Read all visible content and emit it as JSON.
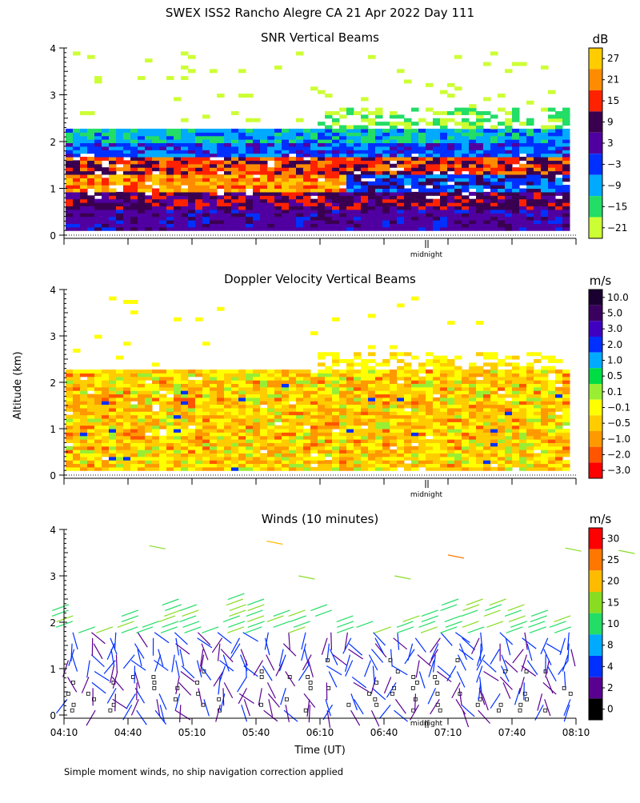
{
  "title": "SWEX ISS2 Rancho Alegre CA  21 Apr 2022 Day 111",
  "footnote": "Simple moment winds, no ship navigation correction applied",
  "shared_axes": {
    "y_label": "Altitude (km)",
    "x_label": "Time (UT)",
    "midnight_label": "midnight",
    "y_ticks": [
      "0",
      "1",
      "2",
      "3",
      "4"
    ],
    "x_tick_labels": [
      "04:10",
      "04:40",
      "05:10",
      "05:40",
      "06:10",
      "06:40",
      "07:10",
      "07:40",
      "08:10"
    ]
  },
  "chart_data": [
    {
      "type": "heatmap",
      "title": "SNR Vertical Beams",
      "unit": "dB",
      "x_range": [
        "04:10",
        "08:10"
      ],
      "ylim": [
        0,
        4
      ],
      "colorbar_labels": [
        "27",
        "21",
        "15",
        "9",
        "3",
        "−3",
        "−9",
        "−15",
        "−21"
      ],
      "colorbar_colors": [
        "#ffcc00",
        "#ff8c00",
        "#ff2200",
        "#3a0050",
        "#5000a0",
        "#0030ff",
        "#00aaff",
        "#22dd66",
        "#ccff33"
      ],
      "layers": [
        {
          "alt_range": [
            0.1,
            0.5
          ],
          "level": "3"
        },
        {
          "alt_range": [
            0.5,
            0.9
          ],
          "level": "9 to 15"
        },
        {
          "alt_range": [
            0.9,
            1.6
          ],
          "level": "15 to 27"
        },
        {
          "alt_range": [
            1.6,
            2.2
          ],
          "level": "−3 to −15"
        },
        {
          "alt_range": [
            2.2,
            3.9
          ],
          "level": "−15 to −21"
        }
      ]
    },
    {
      "type": "heatmap",
      "title": "Doppler Velocity Vertical Beams",
      "unit": "m/s",
      "x_range": [
        "04:10",
        "08:10"
      ],
      "ylim": [
        0,
        4
      ],
      "colorbar_labels": [
        "10.0",
        "5.0",
        "3.0",
        "2.0",
        "1.0",
        "0.5",
        "0.1",
        "−0.1",
        "−0.5",
        "−1.0",
        "−2.0",
        "−3.0"
      ],
      "colorbar_colors": [
        "#1a0030",
        "#3a0060",
        "#4000c0",
        "#0030ff",
        "#00aaff",
        "#00dd44",
        "#99ee33",
        "#ffff00",
        "#ffcc00",
        "#ff9900",
        "#ff5500",
        "#ff0000"
      ],
      "layers": [
        {
          "alt_range": [
            0.1,
            2.2
          ],
          "level": "−0.1 to −1.0"
        },
        {
          "alt_range": [
            2.2,
            3.8
          ],
          "level": "0.1 to −0.1"
        }
      ]
    },
    {
      "type": "scatter",
      "title": "Winds (10 minutes)",
      "unit": "m/s",
      "x_range": [
        "04:10",
        "08:10"
      ],
      "ylim": [
        0,
        4
      ],
      "colorbar_labels": [
        "30",
        "25",
        "20",
        "15",
        "10",
        "8",
        "4",
        "2",
        "0"
      ],
      "colorbar_colors": [
        "#ff0000",
        "#ff7700",
        "#ffbb00",
        "#88dd22",
        "#22dd66",
        "#00aaff",
        "#0030ff",
        "#5a0090",
        "#000000"
      ],
      "speed_levels": [
        0,
        2,
        4,
        8,
        10,
        15,
        20,
        25,
        30
      ]
    }
  ]
}
